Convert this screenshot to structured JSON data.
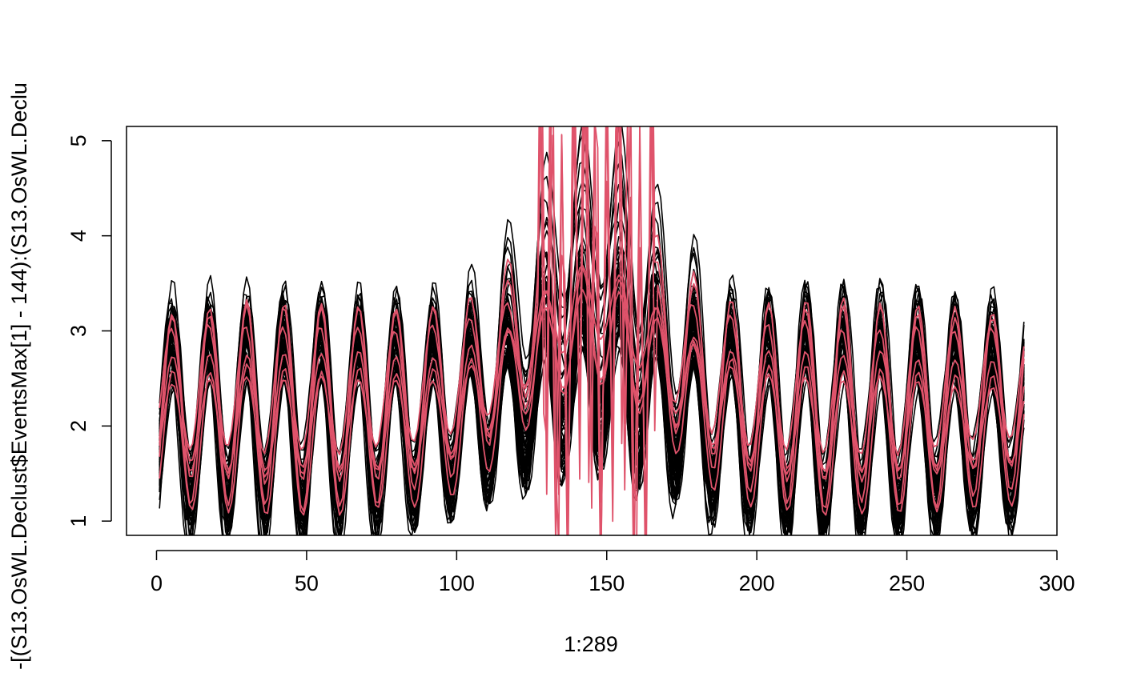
{
  "chart_data": {
    "type": "line",
    "title": "",
    "xlabel": "1:289",
    "ylabel": "-[(S13.OsWL.Declust$EventsMax[1] - 144):(S13.OsWL.Declu",
    "xlim": [
      -10,
      300
    ],
    "ylim": [
      0.85,
      5.15
    ],
    "x_ticks": [
      {
        "value": 0,
        "label": "0"
      },
      {
        "value": 50,
        "label": "50"
      },
      {
        "value": 100,
        "label": "100"
      },
      {
        "value": 150,
        "label": "150"
      },
      {
        "value": 200,
        "label": "200"
      },
      {
        "value": 250,
        "label": "250"
      },
      {
        "value": 300,
        "label": "300"
      }
    ],
    "y_ticks": [
      {
        "value": 1,
        "label": "1"
      },
      {
        "value": 2,
        "label": "2"
      },
      {
        "value": 3,
        "label": "3"
      },
      {
        "value": 4,
        "label": "4"
      },
      {
        "value": 5,
        "label": "5"
      }
    ],
    "grid": false,
    "legend": "none",
    "x": "1..289",
    "series_groups": [
      {
        "color": "#000000",
        "line_count": 60,
        "pattern": "tidal water-level sequences oscillating with a period of about 12.4 steps, typically between ~1 and ~3.4, with a storm surge peak near x=145",
        "peak": {
          "x": 145,
          "max_y": 4.7
        },
        "typical_range": [
          1.0,
          3.5
        ]
      },
      {
        "color": "#DF536B",
        "line_count": 6,
        "pattern": "tidal sequences overlaying the black ones; several spike off-scale between x=127 and x=166",
        "peak": {
          "x": 145,
          "max_y": 5.0
        },
        "typical_range": [
          1.4,
          3.2
        ]
      }
    ]
  },
  "colors": {
    "background": "#FFFFFF",
    "axis": "#000000",
    "black_series": "#000000",
    "red_series": "#DF536B"
  }
}
